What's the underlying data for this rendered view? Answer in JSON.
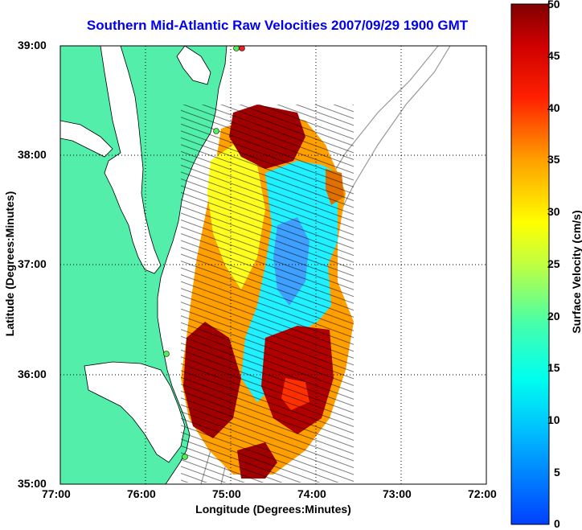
{
  "title": "Southern Mid-Atlantic Raw Velocities 2007/09/29 1900 GMT",
  "xlabel": "Longitude (Degrees:Minutes)",
  "ylabel": "Latitude (Degrees:Minutes)",
  "colorbar": {
    "label": "Surface Velocity (cm/s)",
    "ticks": [
      "0",
      "5",
      "10",
      "15",
      "20",
      "25",
      "30",
      "35",
      "40",
      "45",
      "50"
    ],
    "min": 0,
    "max": 50
  },
  "x_ticks": [
    "77:00",
    "76:00",
    "75:00",
    "74:00",
    "73:00",
    "72:00"
  ],
  "y_ticks": [
    "39:00",
    "38:00",
    "37:00",
    "36:00",
    "35:00"
  ],
  "colors": {
    "land": "#52eeaa",
    "title": "#0000ee",
    "grid": "#000000"
  },
  "map": {
    "lon_range": [
      -77,
      -72
    ],
    "lat_range": [
      35,
      39
    ],
    "grid": "dotted"
  }
}
